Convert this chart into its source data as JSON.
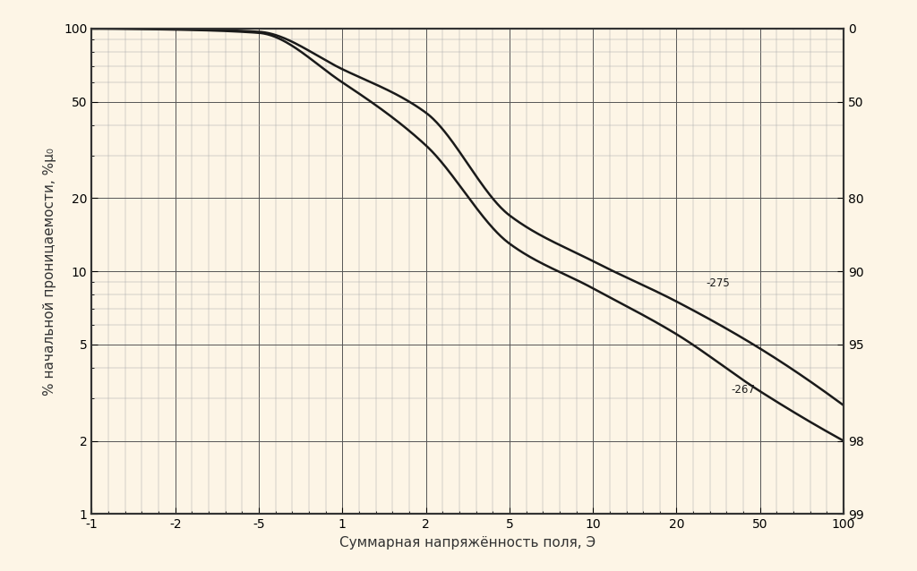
{
  "background_color": "#fdf5e6",
  "grid_color": "#aaaaaa",
  "major_grid_color": "#555555",
  "line_color": "#1a1a1a",
  "title_color": "#333333",
  "xlabel": "Суммарная напряжённость поля, Э",
  "ylabel": "% начальной проницаемости, %μ₀",
  "label_275": "-275",
  "label_267": "-267",
  "left_yticks": [
    100,
    50,
    20,
    10,
    5,
    2,
    1
  ],
  "right_yticks": [
    0,
    50,
    80,
    90,
    95,
    98,
    99
  ],
  "xtick_labels": [
    "-1",
    "-2",
    "-5",
    "1",
    "2",
    "5",
    "10",
    "20",
    "50",
    "100"
  ],
  "x_positions_lin": [
    0,
    1,
    2,
    3,
    4,
    5,
    6,
    7,
    8,
    9
  ],
  "ctrl267_lin": [
    0,
    1,
    2,
    3,
    4,
    5,
    6,
    7,
    8,
    9
  ],
  "ctrl267_y": [
    100,
    99,
    96,
    60,
    33,
    13,
    8.5,
    5.5,
    3.2,
    2.0
  ],
  "ctrl275_lin": [
    0,
    1,
    2,
    3,
    4,
    5,
    6,
    7,
    8,
    9
  ],
  "ctrl275_y": [
    100,
    99.5,
    97,
    68,
    45,
    17,
    11,
    7.5,
    4.8,
    2.8
  ],
  "fontsize_labels": 11,
  "fontsize_ticks": 10
}
